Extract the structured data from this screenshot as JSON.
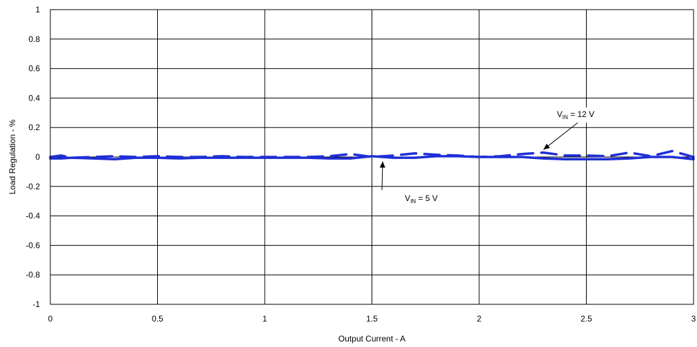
{
  "chart_data": {
    "type": "line",
    "title": "",
    "xlabel": "Output Current - A",
    "ylabel": "Load Regulation - %",
    "xlim": [
      0,
      3
    ],
    "ylim": [
      -1,
      1
    ],
    "x_ticks": [
      "0",
      "0.5",
      "1",
      "1.5",
      "2",
      "2.5",
      "3"
    ],
    "y_ticks": [
      "1",
      "0.8",
      "0.6",
      "0.4",
      "0.2",
      "0",
      "-0.2",
      "-0.4",
      "-0.6",
      "-0.8",
      "-1"
    ],
    "grid": true,
    "legend": "none",
    "series": [
      {
        "name": "VIN = 12 V",
        "style": "dashed",
        "color": "#1f2fd6",
        "x": [
          0,
          0.05,
          0.1,
          0.2,
          0.3,
          0.4,
          0.5,
          0.6,
          0.7,
          0.8,
          0.9,
          1.0,
          1.1,
          1.2,
          1.3,
          1.4,
          1.5,
          1.6,
          1.7,
          1.8,
          1.9,
          2.0,
          2.1,
          2.2,
          2.3,
          2.4,
          2.5,
          2.6,
          2.7,
          2.8,
          2.9,
          2.95,
          3.0
        ],
        "values": [
          0.0,
          0.01,
          -0.005,
          0.0,
          0.005,
          0.0,
          0.005,
          0.0,
          0.0,
          0.005,
          0.0,
          0.0,
          0.0,
          0.0,
          0.005,
          0.02,
          0.0,
          0.01,
          0.025,
          0.015,
          0.01,
          0.0,
          0.005,
          0.02,
          0.03,
          0.01,
          0.01,
          0.005,
          0.03,
          0.005,
          0.04,
          0.02,
          0.0
        ]
      },
      {
        "name": "VIN = 5 V",
        "style": "solid",
        "color": "#1f2fd6",
        "x": [
          0,
          0.05,
          0.1,
          0.2,
          0.3,
          0.4,
          0.5,
          0.6,
          0.7,
          0.8,
          0.9,
          1.0,
          1.1,
          1.2,
          1.3,
          1.4,
          1.5,
          1.6,
          1.7,
          1.8,
          1.9,
          2.0,
          2.1,
          2.2,
          2.3,
          2.4,
          2.5,
          2.6,
          2.7,
          2.8,
          2.9,
          3.0
        ],
        "values": [
          -0.01,
          -0.01,
          -0.005,
          -0.01,
          -0.015,
          -0.005,
          -0.005,
          -0.01,
          -0.005,
          -0.005,
          -0.005,
          -0.005,
          -0.005,
          -0.005,
          -0.01,
          -0.01,
          0.005,
          -0.005,
          -0.005,
          0.005,
          0.005,
          0.0,
          0.0,
          0.0,
          -0.01,
          -0.015,
          -0.015,
          -0.015,
          -0.01,
          0.0,
          0.0,
          -0.015
        ]
      }
    ],
    "annotations": [
      {
        "id": "vin12",
        "prefix": "V",
        "sub": "IN",
        "suffix": " = 12 V",
        "label_x": 2.45,
        "label_y": 0.27,
        "arrow_to_x": 2.3,
        "arrow_to_y": 0.05
      },
      {
        "id": "vin5",
        "prefix": "V",
        "sub": "IN",
        "suffix": " = 5 V",
        "label_x": 1.73,
        "label_y": -0.3,
        "arrow_to_x": 1.55,
        "arrow_to_y": -0.03
      }
    ]
  }
}
